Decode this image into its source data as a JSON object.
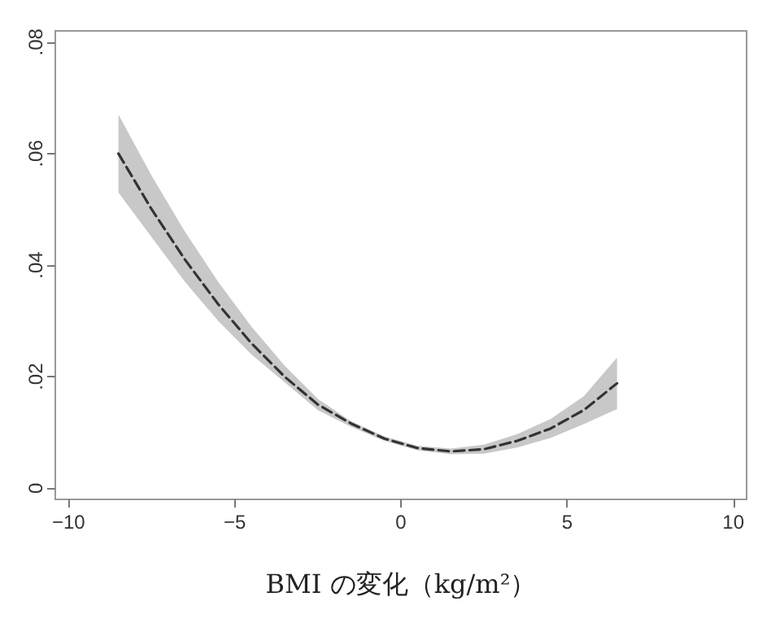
{
  "chart_data": {
    "type": "line",
    "xlabel": "BMI の変化（kg/m²）",
    "x": [
      -8.5,
      -7.5,
      -6.5,
      -5.5,
      -4.5,
      -3.5,
      -2.5,
      -1.5,
      -0.5,
      0.5,
      1.5,
      2.5,
      3.5,
      4.5,
      5.5,
      6.5
    ],
    "series": [
      {
        "color": "#333333",
        "line_style": "dashed",
        "values": [
          0.06,
          0.05,
          0.041,
          0.033,
          0.026,
          0.02,
          0.015,
          0.0116,
          0.0089,
          0.0072,
          0.0066,
          0.007,
          0.0085,
          0.0107,
          0.014,
          0.0188
        ],
        "lower": [
          0.053,
          0.045,
          0.037,
          0.03,
          0.024,
          0.019,
          0.014,
          0.011,
          0.0085,
          0.0068,
          0.0061,
          0.0062,
          0.0073,
          0.009,
          0.0115,
          0.0142
        ],
        "upper": [
          0.067,
          0.056,
          0.046,
          0.037,
          0.029,
          0.022,
          0.016,
          0.012,
          0.0093,
          0.0076,
          0.0071,
          0.0078,
          0.0097,
          0.0124,
          0.0165,
          0.0234
        ]
      }
    ],
    "xlim": [
      -10.4,
      10.4
    ],
    "xticks": [
      {
        "value": -10,
        "label": "−10"
      },
      {
        "value": -5,
        "label": "−5"
      },
      0,
      5,
      10
    ],
    "ylim": [
      -0.002,
      0.082
    ],
    "yticks": [
      0,
      {
        "value": 0.02,
        "label": ".02"
      },
      {
        "value": 0.04,
        "label": ".04"
      },
      {
        "value": 0.06,
        "label": ".06"
      },
      {
        "value": 0.08,
        "label": ".08"
      }
    ],
    "marker": "none"
  }
}
